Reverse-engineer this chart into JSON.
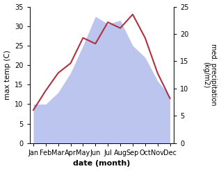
{
  "months": [
    "Jan",
    "Feb",
    "Mar",
    "Apr",
    "May",
    "Jun",
    "Jul",
    "Aug",
    "Sep",
    "Oct",
    "Nov",
    "Dec"
  ],
  "temperature": [
    8.5,
    13.5,
    18.0,
    20.5,
    27.0,
    25.5,
    31.0,
    29.5,
    33.0,
    27.0,
    18.0,
    11.5
  ],
  "precipitation": [
    10,
    10,
    13,
    18,
    25,
    32.5,
    30.5,
    31.5,
    25,
    22,
    16,
    12
  ],
  "temp_color": "#b03040",
  "precip_fill_color": "#bcc5ee",
  "temp_ylim": [
    0,
    35
  ],
  "precip_ylim": [
    0,
    25
  ],
  "xlabel": "date (month)",
  "ylabel_left": "max temp (C)",
  "ylabel_right": "med. precipitation\n(kg/m2)"
}
